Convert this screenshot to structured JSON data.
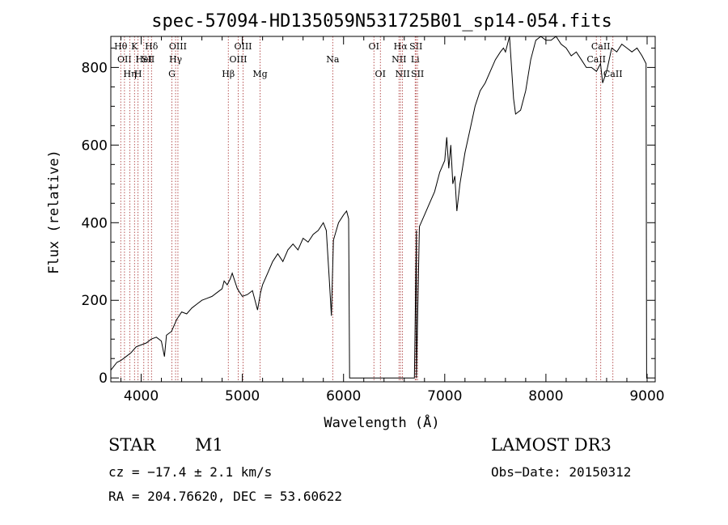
{
  "chart_data": {
    "type": "line",
    "title": "spec-57094-HD135059N531725B01_sp14-054.fits",
    "xlabel": "Wavelength (Å)",
    "ylabel": "Flux (relative)",
    "xlim": [
      3700,
      9080
    ],
    "ylim": [
      -10,
      880
    ],
    "xticks": [
      4000,
      5000,
      6000,
      7000,
      8000,
      9000
    ],
    "xtick_labels": [
      "4000",
      "5000",
      "6000",
      "7000",
      "8000",
      "9000"
    ],
    "yticks": [
      0,
      200,
      400,
      600,
      800
    ],
    "ytick_labels": [
      "0",
      "200",
      "400",
      "600",
      "800"
    ],
    "series": [
      {
        "name": "flux",
        "x": [
          3700,
          3760,
          3800,
          3850,
          3900,
          3950,
          4000,
          4050,
          4100,
          4150,
          4200,
          4230,
          4250,
          4300,
          4350,
          4400,
          4450,
          4500,
          4550,
          4600,
          4650,
          4700,
          4750,
          4800,
          4820,
          4850,
          4880,
          4900,
          4950,
          5000,
          5050,
          5100,
          5150,
          5180,
          5200,
          5250,
          5300,
          5350,
          5400,
          5450,
          5500,
          5550,
          5600,
          5650,
          5700,
          5750,
          5800,
          5830,
          5860,
          5880,
          5900,
          5950,
          6000,
          6030,
          6050,
          6060,
          6060,
          6700,
          6700,
          6720,
          6720,
          6750,
          6800,
          6850,
          6900,
          6950,
          7000,
          7020,
          7040,
          7060,
          7080,
          7100,
          7120,
          7150,
          7200,
          7250,
          7300,
          7350,
          7400,
          7450,
          7500,
          7550,
          7580,
          7600,
          7640,
          7660,
          7680,
          7700,
          7750,
          7800,
          7850,
          7900,
          7950,
          8000,
          8050,
          8100,
          8150,
          8200,
          8250,
          8300,
          8350,
          8400,
          8450,
          8500,
          8540,
          8560,
          8600,
          8650,
          8700,
          8750,
          8800,
          8850,
          8900,
          8950,
          8990,
          8995,
          9005
        ],
        "y": [
          20,
          40,
          45,
          55,
          65,
          80,
          85,
          90,
          100,
          105,
          95,
          55,
          110,
          120,
          150,
          170,
          165,
          180,
          190,
          200,
          205,
          210,
          220,
          230,
          250,
          240,
          255,
          270,
          230,
          210,
          215,
          225,
          175,
          220,
          240,
          270,
          300,
          320,
          300,
          330,
          345,
          330,
          360,
          350,
          370,
          380,
          400,
          380,
          250,
          160,
          355,
          400,
          420,
          430,
          410,
          0,
          0,
          0,
          0,
          380,
          0,
          390,
          420,
          450,
          480,
          530,
          560,
          620,
          540,
          600,
          500,
          520,
          430,
          500,
          580,
          640,
          700,
          740,
          760,
          790,
          820,
          840,
          850,
          840,
          880,
          800,
          720,
          680,
          690,
          740,
          820,
          870,
          880,
          870,
          870,
          880,
          860,
          850,
          830,
          840,
          820,
          800,
          800,
          790,
          810,
          760,
          790,
          850,
          840,
          860,
          850,
          840,
          850,
          830,
          810,
          0,
          0
        ]
      }
    ],
    "line_markers": [
      {
        "wavelength": 3798,
        "label": "Hθ",
        "row": 1
      },
      {
        "wavelength": 3835,
        "label": "OII",
        "row": 2
      },
      {
        "wavelength": 3889,
        "label": "Hη",
        "row": 3
      },
      {
        "wavelength": 3934,
        "label": "K",
        "row": 1
      },
      {
        "wavelength": 3969,
        "label": "H",
        "row": 3
      },
      {
        "wavelength": 4026,
        "label": "HeI",
        "row": 2
      },
      {
        "wavelength": 4069,
        "label": "SII",
        "row": 2
      },
      {
        "wavelength": 4102,
        "label": "Hδ",
        "row": 1
      },
      {
        "wavelength": 4304,
        "label": "G",
        "row": 3
      },
      {
        "wavelength": 4340,
        "label": "Hγ",
        "row": 2
      },
      {
        "wavelength": 4363,
        "label": "OIII",
        "row": 1
      },
      {
        "wavelength": 4861,
        "label": "Hβ",
        "row": 3
      },
      {
        "wavelength": 4959,
        "label": "OIII",
        "row": 2
      },
      {
        "wavelength": 5007,
        "label": "OIII",
        "row": 1
      },
      {
        "wavelength": 5175,
        "label": "Mg",
        "row": 3
      },
      {
        "wavelength": 5893,
        "label": "Na",
        "row": 2
      },
      {
        "wavelength": 6300,
        "label": "OI",
        "row": 1
      },
      {
        "wavelength": 6364,
        "label": "OI",
        "row": 3
      },
      {
        "wavelength": 6548,
        "label": "NII",
        "row": 2
      },
      {
        "wavelength": 6563,
        "label": "Hα",
        "row": 1
      },
      {
        "wavelength": 6583,
        "label": "NII",
        "row": 3
      },
      {
        "wavelength": 6708,
        "label": "Li",
        "row": 2
      },
      {
        "wavelength": 6716,
        "label": "SII",
        "row": 1
      },
      {
        "wavelength": 6731,
        "label": "SII",
        "row": 3
      },
      {
        "wavelength": 8498,
        "label": "CaII",
        "row": 2
      },
      {
        "wavelength": 8542,
        "label": "CaII",
        "row": 1
      },
      {
        "wavelength": 8662,
        "label": "CaII",
        "row": 3
      }
    ],
    "grid": false,
    "colors": {
      "curve": "#000000",
      "markers": "#a52a2a",
      "axes": "#000000"
    }
  },
  "footer": {
    "class_label": "STAR",
    "subclass_label": "M1",
    "survey_label": "LAMOST DR3",
    "redshift_text": "cz = −17.4 ± 2.1 km/s",
    "obsdate_text": "Obs−Date: 20150312",
    "coords_text": "RA = 204.76620, DEC =  53.60622"
  }
}
